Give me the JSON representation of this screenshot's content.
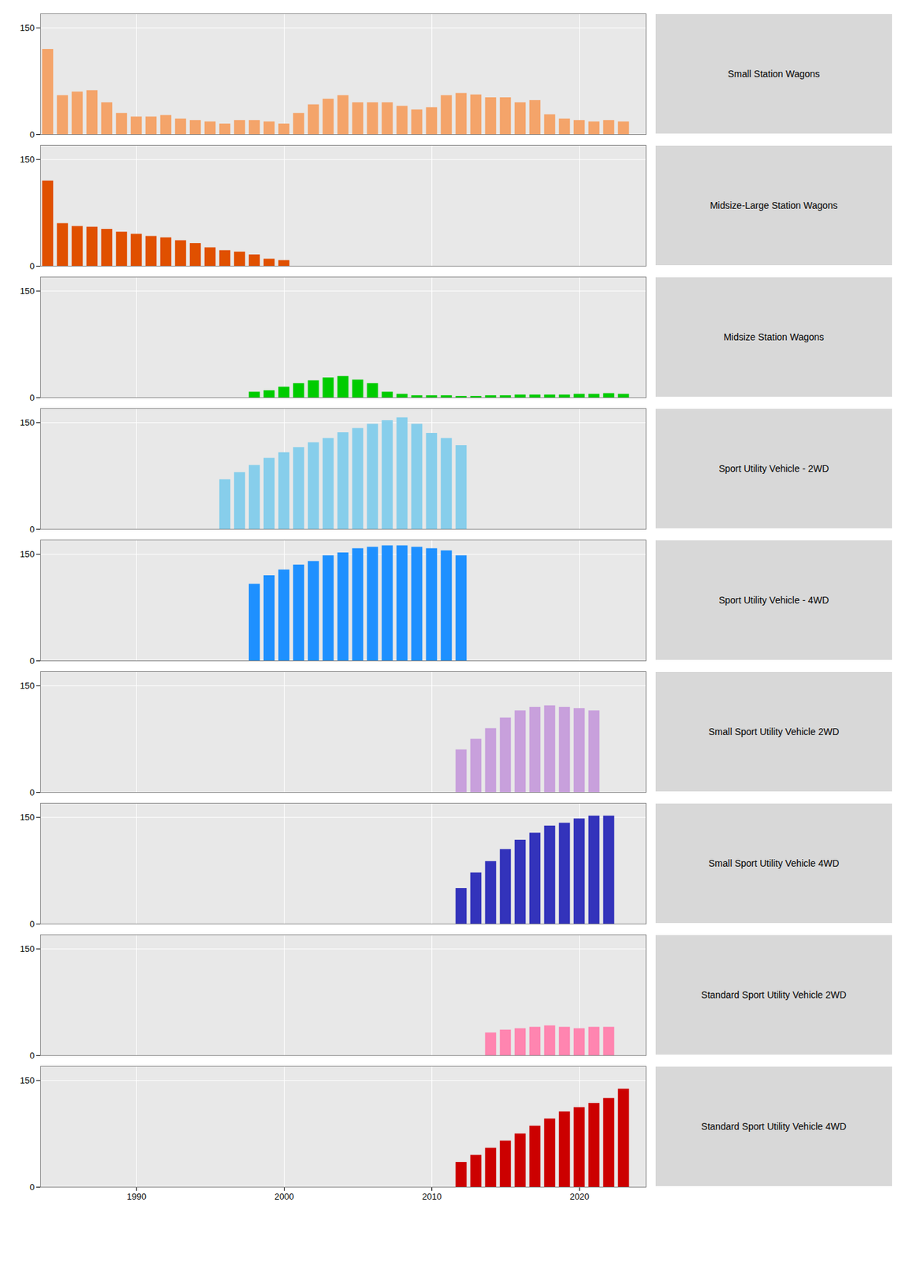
{
  "chart_data": [
    {
      "type": "bar",
      "title": "Small Station Wagons",
      "color": "#F4A46A",
      "x": [
        1984,
        1985,
        1986,
        1987,
        1988,
        1989,
        1990,
        1991,
        1992,
        1993,
        1994,
        1995,
        1996,
        1997,
        1998,
        1999,
        2000,
        2001,
        2002,
        2003,
        2004,
        2005,
        2006,
        2007,
        2008,
        2009,
        2010,
        2011,
        2012,
        2013,
        2014,
        2015,
        2016,
        2017,
        2018,
        2019,
        2020,
        2021,
        2022,
        2023
      ],
      "values": [
        120,
        55,
        60,
        62,
        45,
        30,
        25,
        25,
        27,
        22,
        20,
        18,
        15,
        20,
        20,
        18,
        15,
        30,
        42,
        50,
        55,
        45,
        45,
        45,
        40,
        35,
        38,
        55,
        58,
        56,
        52,
        52,
        45,
        48,
        28,
        22,
        20,
        18,
        20,
        18
      ],
      "xlim": [
        1983.5,
        2024.5
      ],
      "xticks": [
        1990,
        2000,
        2010,
        2020
      ],
      "ylim": [
        0,
        170
      ],
      "yticks": [
        0,
        150
      ],
      "grid": true,
      "tick_labels": "y"
    },
    {
      "type": "bar",
      "title": "Midsize-Large Station Wagons",
      "color": "#E05000",
      "x": [
        1984,
        1985,
        1986,
        1987,
        1988,
        1989,
        1990,
        1991,
        1992,
        1993,
        1994,
        1995,
        1996,
        1997,
        1998,
        1999,
        2000
      ],
      "values": [
        120,
        60,
        56,
        55,
        52,
        48,
        45,
        42,
        40,
        36,
        32,
        26,
        22,
        20,
        16,
        10,
        8
      ],
      "xlim": [
        1983.5,
        2024.5
      ],
      "xticks": [
        1990,
        2000,
        2010,
        2020
      ],
      "ylim": [
        0,
        170
      ],
      "yticks": [
        0,
        150
      ],
      "grid": true,
      "tick_labels": "y"
    },
    {
      "type": "bar",
      "title": "Midsize Station Wagons",
      "color": "#00CC00",
      "x": [
        1998,
        1999,
        2000,
        2001,
        2002,
        2003,
        2004,
        2005,
        2006,
        2007,
        2008,
        2009,
        2010,
        2011,
        2012,
        2013,
        2014,
        2015,
        2016,
        2017,
        2018,
        2019,
        2020,
        2021,
        2022,
        2023
      ],
      "values": [
        8,
        10,
        15,
        20,
        24,
        28,
        30,
        25,
        20,
        8,
        5,
        3,
        3,
        3,
        2,
        2,
        3,
        3,
        4,
        4,
        4,
        4,
        5,
        5,
        6,
        5
      ],
      "xlim": [
        1983.5,
        2024.5
      ],
      "xticks": [
        1990,
        2000,
        2010,
        2020
      ],
      "ylim": [
        0,
        170
      ],
      "yticks": [
        0,
        150
      ],
      "grid": true,
      "tick_labels": "y"
    },
    {
      "type": "bar",
      "title": "Sport Utility Vehicle - 2WD",
      "color": "#87CEEB",
      "x": [
        1996,
        1997,
        1998,
        1999,
        2000,
        2001,
        2002,
        2003,
        2004,
        2005,
        2006,
        2007,
        2008,
        2009,
        2010,
        2011,
        2012
      ],
      "values": [
        70,
        80,
        90,
        100,
        108,
        115,
        122,
        128,
        136,
        142,
        148,
        153,
        157,
        148,
        135,
        128,
        118
      ],
      "xlim": [
        1983.5,
        2024.5
      ],
      "xticks": [
        1990,
        2000,
        2010,
        2020
      ],
      "ylim": [
        0,
        170
      ],
      "yticks": [
        0,
        150
      ],
      "grid": true,
      "tick_labels": "y"
    },
    {
      "type": "bar",
      "title": "Sport Utility Vehicle - 4WD",
      "color": "#1E90FF",
      "x": [
        1998,
        1999,
        2000,
        2001,
        2002,
        2003,
        2004,
        2005,
        2006,
        2007,
        2008,
        2009,
        2010,
        2011,
        2012
      ],
      "values": [
        108,
        120,
        128,
        135,
        140,
        148,
        152,
        158,
        160,
        162,
        162,
        160,
        158,
        155,
        148
      ],
      "xlim": [
        1983.5,
        2024.5
      ],
      "xticks": [
        1990,
        2000,
        2010,
        2020
      ],
      "ylim": [
        0,
        170
      ],
      "yticks": [
        0,
        150
      ],
      "grid": true,
      "tick_labels": "y"
    },
    {
      "type": "bar",
      "title": "Small Sport Utility Vehicle 2WD",
      "color": "#C8A0DC",
      "x": [
        2012,
        2013,
        2014,
        2015,
        2016,
        2017,
        2018,
        2019,
        2020,
        2021
      ],
      "values": [
        60,
        75,
        90,
        105,
        115,
        120,
        122,
        120,
        118,
        115
      ],
      "xlim": [
        1983.5,
        2024.5
      ],
      "xticks": [
        1990,
        2000,
        2010,
        2020
      ],
      "ylim": [
        0,
        170
      ],
      "yticks": [
        0,
        150
      ],
      "grid": true,
      "tick_labels": "y"
    },
    {
      "type": "bar",
      "title": "Small Sport Utility Vehicle 4WD",
      "color": "#3333BB",
      "x": [
        2012,
        2013,
        2014,
        2015,
        2016,
        2017,
        2018,
        2019,
        2020,
        2021,
        2022
      ],
      "values": [
        50,
        72,
        88,
        105,
        118,
        128,
        138,
        142,
        148,
        152,
        152
      ],
      "xlim": [
        1983.5,
        2024.5
      ],
      "xticks": [
        1990,
        2000,
        2010,
        2020
      ],
      "ylim": [
        0,
        170
      ],
      "yticks": [
        0,
        150
      ],
      "grid": true,
      "tick_labels": "y"
    },
    {
      "type": "bar",
      "title": "Standard Sport Utility Vehicle 2WD",
      "color": "#FF85B0",
      "x": [
        2014,
        2015,
        2016,
        2017,
        2018,
        2019,
        2020,
        2021,
        2022
      ],
      "values": [
        32,
        36,
        38,
        40,
        42,
        40,
        38,
        40,
        40
      ],
      "xlim": [
        1983.5,
        2024.5
      ],
      "xticks": [
        1990,
        2000,
        2010,
        2020
      ],
      "ylim": [
        0,
        170
      ],
      "yticks": [
        0,
        150
      ],
      "grid": true,
      "tick_labels": "y"
    },
    {
      "type": "bar",
      "title": "Standard Sport Utility Vehicle 4WD",
      "color": "#CC0000",
      "x": [
        2012,
        2013,
        2014,
        2015,
        2016,
        2017,
        2018,
        2019,
        2020,
        2021,
        2022,
        2023
      ],
      "values": [
        35,
        45,
        55,
        65,
        75,
        86,
        96,
        106,
        112,
        118,
        125,
        138
      ],
      "xlim": [
        1983.5,
        2024.5
      ],
      "xticks": [
        1990,
        2000,
        2010,
        2020
      ],
      "ylim": [
        0,
        170
      ],
      "yticks": [
        0,
        150
      ],
      "grid": true
    }
  ]
}
